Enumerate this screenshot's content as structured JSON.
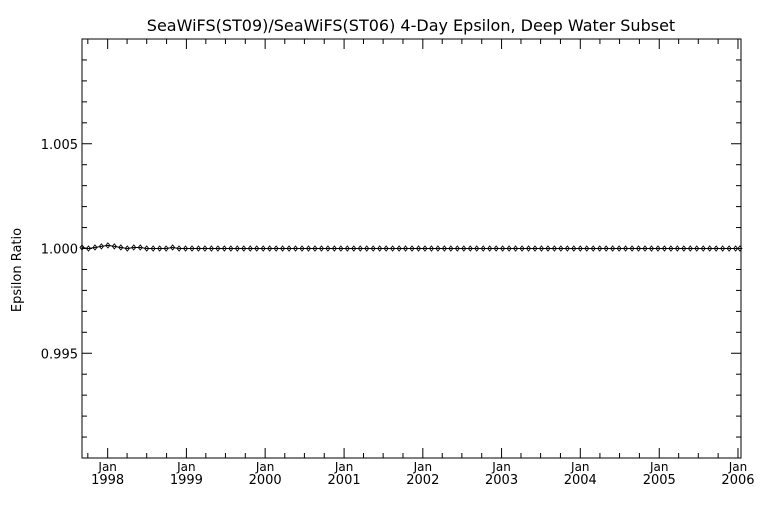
{
  "chart_data": {
    "type": "line",
    "title": "SeaWiFS(ST09)/SeaWiFS(ST06) 4-Day Epsilon, Deep Water Subset",
    "xlabel": "",
    "ylabel": "Epsilon Ratio",
    "xlim": [
      "1997-09-04",
      "2006-01-15"
    ],
    "ylim": [
      0.99,
      1.01
    ],
    "grid": false,
    "y_major_ticks": [
      {
        "value": 0.995,
        "label": "0.995"
      },
      {
        "value": 1.0,
        "label": "1.000"
      },
      {
        "value": 1.005,
        "label": "1.005"
      }
    ],
    "x_major_ticks": [
      {
        "date": "1998-01-01",
        "month": "Jan",
        "year": "1998"
      },
      {
        "date": "1999-01-01",
        "month": "Jan",
        "year": "1999"
      },
      {
        "date": "2000-01-01",
        "month": "Jan",
        "year": "2000"
      },
      {
        "date": "2001-01-01",
        "month": "Jan",
        "year": "2001"
      },
      {
        "date": "2002-01-01",
        "month": "Jan",
        "year": "2002"
      },
      {
        "date": "2003-01-01",
        "month": "Jan",
        "year": "2003"
      },
      {
        "date": "2004-01-01",
        "month": "Jan",
        "year": "2004"
      },
      {
        "date": "2005-01-01",
        "month": "Jan",
        "year": "2005"
      },
      {
        "date": "2006-01-01",
        "month": "Jan",
        "year": "2006"
      }
    ],
    "series": [
      {
        "marker": "diamond",
        "color": "#000000",
        "x": [
          "1997-09-04",
          "1997-10-04",
          "1997-11-03",
          "1997-12-03",
          "1998-01-02",
          "1998-02-01",
          "1998-03-03",
          "1998-04-02",
          "1998-05-02",
          "1998-06-01",
          "1998-07-01",
          "1998-07-31",
          "1998-08-30",
          "1998-09-29",
          "1998-10-29",
          "1998-11-28",
          "1998-12-28",
          "1999-01-27",
          "1999-02-26",
          "1999-03-28",
          "1999-04-27",
          "1999-05-27",
          "1999-06-26",
          "1999-07-26",
          "1999-08-25",
          "1999-09-24",
          "1999-10-24",
          "1999-11-23",
          "1999-12-23",
          "2000-01-22",
          "2000-02-21",
          "2000-03-22",
          "2000-04-21",
          "2000-05-21",
          "2000-06-20",
          "2000-07-20",
          "2000-08-19",
          "2000-09-18",
          "2000-10-18",
          "2000-11-17",
          "2000-12-17",
          "2001-01-16",
          "2001-02-15",
          "2001-03-17",
          "2001-04-16",
          "2001-05-16",
          "2001-06-15",
          "2001-07-15",
          "2001-08-14",
          "2001-09-13",
          "2001-10-13",
          "2001-11-12",
          "2001-12-12",
          "2002-01-11",
          "2002-02-10",
          "2002-03-12",
          "2002-04-11",
          "2002-05-11",
          "2002-06-10",
          "2002-07-10",
          "2002-08-09",
          "2002-09-08",
          "2002-10-08",
          "2002-11-07",
          "2002-12-07",
          "2003-01-06",
          "2003-02-05",
          "2003-03-07",
          "2003-04-06",
          "2003-05-06",
          "2003-06-05",
          "2003-07-05",
          "2003-08-04",
          "2003-09-03",
          "2003-10-03",
          "2003-11-02",
          "2003-12-02",
          "2004-01-01",
          "2004-01-31",
          "2004-03-01",
          "2004-03-31",
          "2004-04-30",
          "2004-05-30",
          "2004-06-29",
          "2004-07-29",
          "2004-08-28",
          "2004-09-27",
          "2004-10-27",
          "2004-11-26",
          "2004-12-26",
          "2005-01-25",
          "2005-02-24",
          "2005-03-26",
          "2005-04-25",
          "2005-05-25",
          "2005-06-24",
          "2005-07-24",
          "2005-08-23",
          "2005-09-22",
          "2005-10-22",
          "2005-11-21",
          "2005-12-21",
          "2006-01-10"
        ],
        "y": [
          1.00005,
          1.0,
          1.00005,
          1.0001,
          1.00015,
          1.0001,
          1.00005,
          1.0,
          1.00005,
          1.00005,
          1.0,
          1.0,
          1.0,
          1.0,
          1.00005,
          1.0,
          1.0,
          1.0,
          1.0,
          1.0,
          1.0,
          1.0,
          1.0,
          1.0,
          1.0,
          1.0,
          1.0,
          1.0,
          1.0,
          1.0,
          1.0,
          1.0,
          1.0,
          1.0,
          1.0,
          1.0,
          1.0,
          1.0,
          1.0,
          1.0,
          1.0,
          1.0,
          1.0,
          1.0,
          1.0,
          1.0,
          1.0,
          1.0,
          1.0,
          1.0,
          1.0,
          1.0,
          1.0,
          1.0,
          1.0,
          1.0,
          1.0,
          1.0,
          1.0,
          1.0,
          1.0,
          1.0,
          1.0,
          1.0,
          1.0,
          1.0,
          1.0,
          1.0,
          1.0,
          1.0,
          1.0,
          1.0,
          1.0,
          1.0,
          1.0,
          1.0,
          1.0,
          1.0,
          1.0,
          1.0,
          1.0,
          1.0,
          1.0,
          1.0,
          1.0,
          1.0,
          1.0,
          1.0,
          1.0,
          1.0,
          1.0,
          1.0,
          1.0,
          1.0,
          1.0,
          1.0,
          1.0,
          1.0,
          1.0,
          1.0,
          1.0,
          1.0,
          1.0
        ]
      }
    ]
  }
}
